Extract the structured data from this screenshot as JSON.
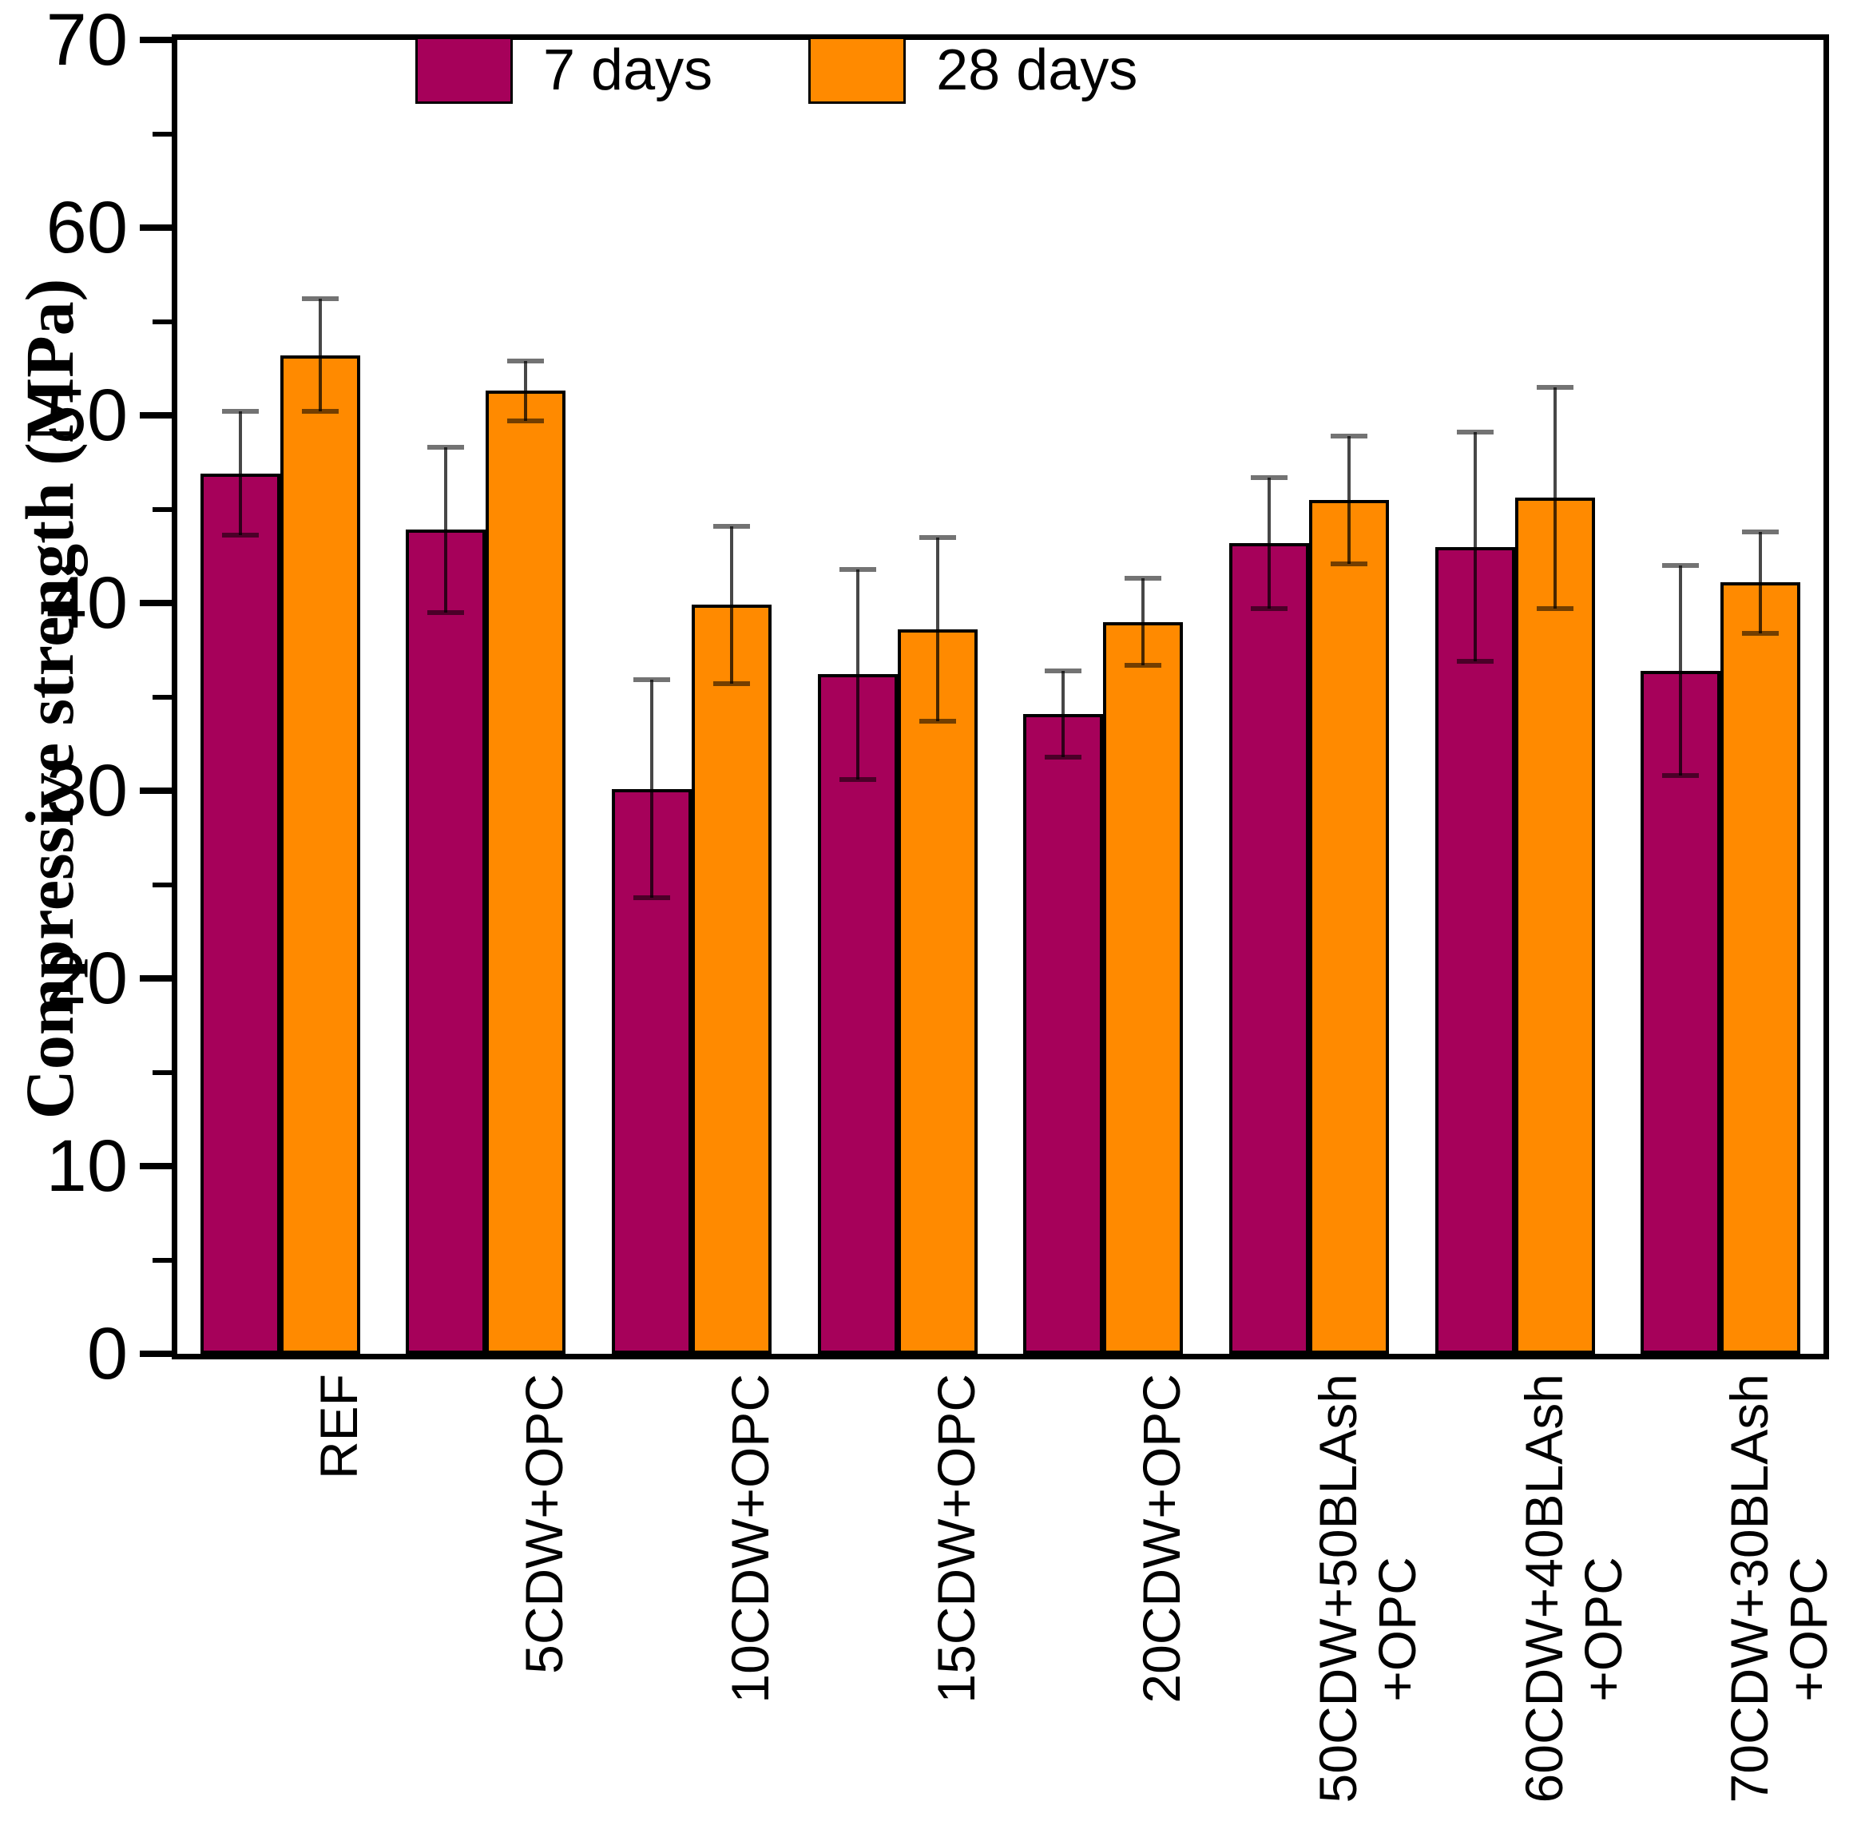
{
  "chart_data": {
    "type": "bar",
    "title": "",
    "xlabel": "",
    "ylabel": "Compressive strength (MPa)",
    "ylim": [
      0,
      70
    ],
    "yticks": [
      0,
      10,
      20,
      30,
      40,
      50,
      60,
      70
    ],
    "minor_yticks": [
      5,
      15,
      25,
      35,
      45,
      55,
      65
    ],
    "grid": false,
    "legend_position": "top-inside",
    "categories": [
      [
        "REF"
      ],
      [
        "5CDW+OPC"
      ],
      [
        "10CDW+OPC"
      ],
      [
        "15CDW+OPC"
      ],
      [
        "20CDW+OPC"
      ],
      [
        "50CDW+50BLAsh",
        "+OPC"
      ],
      [
        "60CDW+40BLAsh",
        "+OPC"
      ],
      [
        "70CDW+30BLAsh",
        "+OPC"
      ]
    ],
    "series": [
      {
        "name": "7 days",
        "color": "#A6015A",
        "values": [
          46.9,
          43.9,
          30.1,
          36.2,
          34.1,
          43.2,
          43.0,
          36.4
        ],
        "errors": [
          3.3,
          4.4,
          5.8,
          5.6,
          2.3,
          3.5,
          6.1,
          5.6
        ]
      },
      {
        "name": "28 days",
        "color": "#FF8A00",
        "values": [
          53.2,
          51.3,
          39.9,
          38.6,
          39.0,
          45.5,
          45.6,
          41.1
        ],
        "errors": [
          3.0,
          1.6,
          4.2,
          4.9,
          2.3,
          3.4,
          5.9,
          2.7
        ]
      }
    ],
    "bar_outline_color": "#000000",
    "axis_color": "#000000"
  }
}
